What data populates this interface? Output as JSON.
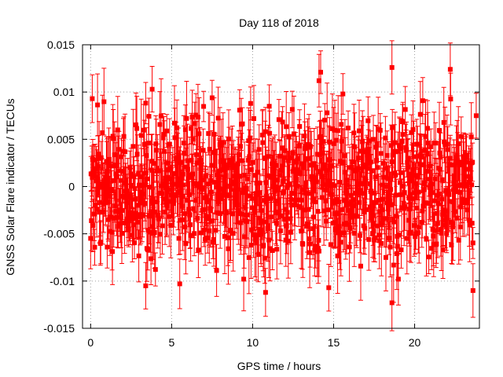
{
  "chart_data": {
    "type": "scatter",
    "title": "Day 118 of 2018",
    "xlabel": "GPS time / hours",
    "ylabel": "GNSS Solar Flare indicator / TECUs",
    "xlim": [
      -0.5,
      24
    ],
    "ylim": [
      -0.015,
      0.015
    ],
    "xticks": [
      0,
      5,
      10,
      15,
      20
    ],
    "xtick_labels": [
      "0",
      "5",
      "10",
      "15",
      "20"
    ],
    "yticks": [
      -0.015,
      -0.01,
      -0.005,
      0,
      0.005,
      0.01,
      0.015
    ],
    "ytick_labels": [
      "-0.015",
      "-0.01",
      "-0.005",
      "0",
      "0.005",
      "0.01",
      "0.015"
    ],
    "grid": true,
    "series": [
      {
        "name": "solar flare indicator",
        "color": "#ff0000",
        "marker": "square",
        "error_bars": true,
        "x_start": 0.0,
        "x_step": 0.025,
        "count": 945,
        "amplitude_envelope": "approximately uniform, values spread roughly within +/-0.008 TECU, occasional points to +/-0.012",
        "notable_points": [
          {
            "x": 0.1,
            "y": 0.0093
          },
          {
            "x": 3.8,
            "y": 0.0103
          },
          {
            "x": 3.4,
            "y": -0.0105
          },
          {
            "x": 5.5,
            "y": -0.0103
          },
          {
            "x": 10.8,
            "y": -0.0112
          },
          {
            "x": 14.2,
            "y": 0.0121
          },
          {
            "x": 14.1,
            "y": 0.0112
          },
          {
            "x": 14.7,
            "y": -0.0107
          },
          {
            "x": 18.6,
            "y": 0.0126
          },
          {
            "x": 18.6,
            "y": -0.0123
          },
          {
            "x": 22.2,
            "y": 0.0124
          },
          {
            "x": 23.6,
            "y": -0.011
          },
          {
            "x": 23.8,
            "y": 0.0075
          }
        ]
      }
    ]
  }
}
